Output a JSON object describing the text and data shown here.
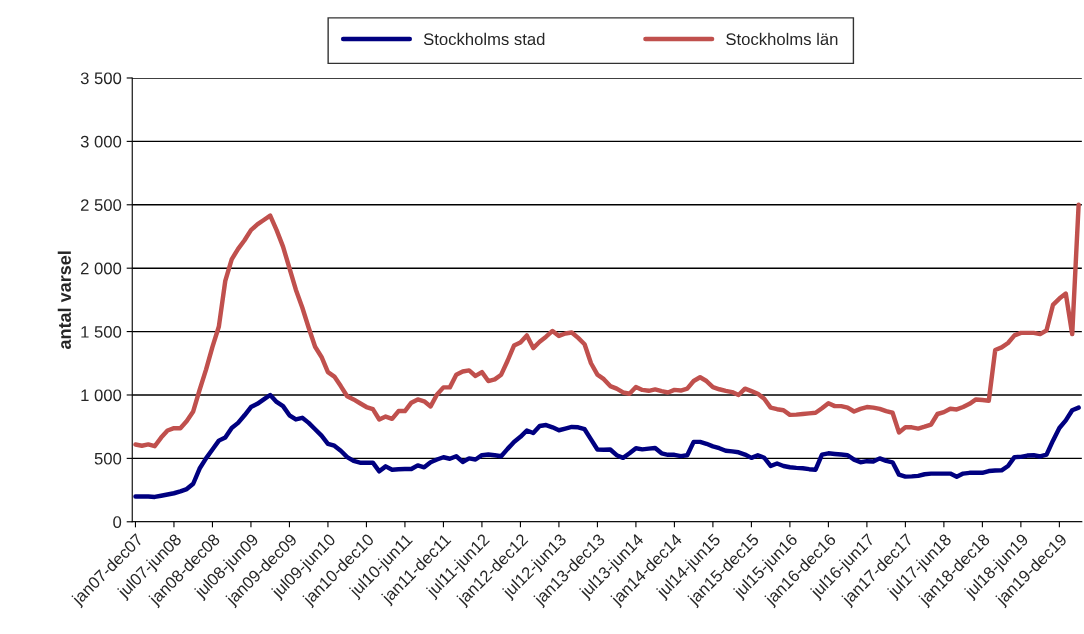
{
  "chart_data": {
    "type": "line",
    "ylabel": "antal varsel",
    "categories": [
      "jan07-dec07",
      null,
      null,
      null,
      null,
      null,
      "jul07-jun08",
      null,
      null,
      null,
      null,
      null,
      "jan08-dec08",
      null,
      null,
      null,
      null,
      null,
      "jul08-jun09",
      null,
      null,
      null,
      null,
      null,
      "jan09-dec09",
      null,
      null,
      null,
      null,
      null,
      "jul09-jun10",
      null,
      null,
      null,
      null,
      null,
      "jan10-dec10",
      null,
      null,
      null,
      null,
      null,
      "jul10-jun11",
      null,
      null,
      null,
      null,
      null,
      "jan11-dec11",
      null,
      null,
      null,
      null,
      null,
      "jul11-jun12",
      null,
      null,
      null,
      null,
      null,
      "jan12-dec12",
      null,
      null,
      null,
      null,
      null,
      "jul12-jun13",
      null,
      null,
      null,
      null,
      null,
      "jan13-dec13",
      null,
      null,
      null,
      null,
      null,
      "jul13-jun14",
      null,
      null,
      null,
      null,
      null,
      "jan14-dec14",
      null,
      null,
      null,
      null,
      null,
      "jul14-jun15",
      null,
      null,
      null,
      null,
      null,
      "jan15-dec15",
      null,
      null,
      null,
      null,
      null,
      "jul15-jun16",
      null,
      null,
      null,
      null,
      null,
      "jan16-dec16",
      null,
      null,
      null,
      null,
      null,
      "jul16-jun17",
      null,
      null,
      null,
      null,
      null,
      "jan17-dec17",
      null,
      null,
      null,
      null,
      null,
      "jul17-jun18",
      null,
      null,
      null,
      null,
      null,
      "jan18-dec18",
      null,
      null,
      null,
      null,
      null,
      "jul18-jun19",
      null,
      null,
      null,
      null,
      null,
      "jan19-dec19",
      null,
      null,
      null
    ],
    "series": [
      {
        "name": "Stockholms stad",
        "color": "#000080",
        "values": [
          200,
          200,
          200,
          196,
          205,
          215,
          225,
          240,
          258,
          300,
          420,
          500,
          570,
          640,
          665,
          740,
          780,
          840,
          905,
          930,
          965,
          1000,
          945,
          912,
          840,
          807,
          820,
          780,
          730,
          680,
          615,
          600,
          560,
          510,
          480,
          466,
          466,
          466,
          398,
          437,
          411,
          415,
          416,
          416,
          445,
          430,
          470,
          491,
          509,
          497,
          517,
          472,
          500,
          491,
          525,
          530,
          525,
          517,
          575,
          630,
          670,
          720,
          700,
          755,
          763,
          745,
          722,
          735,
          748,
          745,
          730,
          650,
          570,
          568,
          570,
          525,
          504,
          540,
          580,
          571,
          577,
          582,
          540,
          528,
          528,
          518,
          525,
          630,
          630,
          615,
          595,
          580,
          560,
          555,
          548,
          530,
          504,
          525,
          505,
          440,
          460,
          440,
          430,
          425,
          422,
          415,
          411,
          530,
          540,
          535,
          530,
          525,
          490,
          470,
          478,
          475,
          500,
          480,
          469,
          372,
          356,
          358,
          362,
          375,
          380,
          380,
          380,
          380,
          355,
          380,
          386,
          386,
          386,
          400,
          405,
          406,
          440,
          510,
          512,
          522,
          525,
          515,
          530,
          640,
          740,
          800,
          880,
          900
        ]
      },
      {
        "name": "Stockholms län",
        "color": "#c0504d",
        "values": [
          609,
          600,
          610,
          596,
          664,
          720,
          738,
          738,
          795,
          870,
          1040,
          1200,
          1380,
          1540,
          1900,
          2070,
          2152,
          2220,
          2300,
          2345,
          2380,
          2415,
          2300,
          2170,
          2000,
          1830,
          1690,
          1530,
          1380,
          1300,
          1180,
          1145,
          1070,
          990,
          965,
          935,
          905,
          888,
          807,
          830,
          812,
          873,
          873,
          939,
          965,
          950,
          910,
          1004,
          1060,
          1060,
          1160,
          1185,
          1194,
          1150,
          1180,
          1110,
          1123,
          1160,
          1270,
          1390,
          1414,
          1470,
          1370,
          1420,
          1460,
          1505,
          1466,
          1485,
          1493,
          1450,
          1400,
          1250,
          1160,
          1125,
          1070,
          1050,
          1020,
          1010,
          1063,
          1040,
          1033,
          1044,
          1030,
          1020,
          1040,
          1035,
          1050,
          1110,
          1140,
          1110,
          1062,
          1045,
          1032,
          1023,
          1000,
          1050,
          1030,
          1010,
          970,
          900,
          888,
          880,
          843,
          845,
          850,
          855,
          860,
          895,
          935,
          912,
          912,
          900,
          870,
          890,
          905,
          900,
          890,
          872,
          860,
          705,
          745,
          745,
          735,
          750,
          767,
          850,
          865,
          892,
          886,
          905,
          930,
          965,
          960,
          955,
          1355,
          1375,
          1410,
          1470,
          1490,
          1490,
          1490,
          1480,
          1510,
          1710,
          1760,
          1800,
          1480,
          2500
        ]
      }
    ],
    "ylim": [
      0,
      3500
    ],
    "yticks": [
      0,
      500,
      {
        "value": 1000,
        "label": "1 000"
      },
      {
        "value": 1500,
        "label": "1 500"
      },
      {
        "value": 2000,
        "label": "2 000"
      },
      {
        "value": 2500,
        "label": "2 500"
      },
      {
        "value": 3000,
        "label": "3 000"
      },
      {
        "value": 3500,
        "label": "3 500"
      }
    ],
    "grid": "y",
    "legend": "top",
    "marker": "none",
    "line_style": "solid"
  }
}
